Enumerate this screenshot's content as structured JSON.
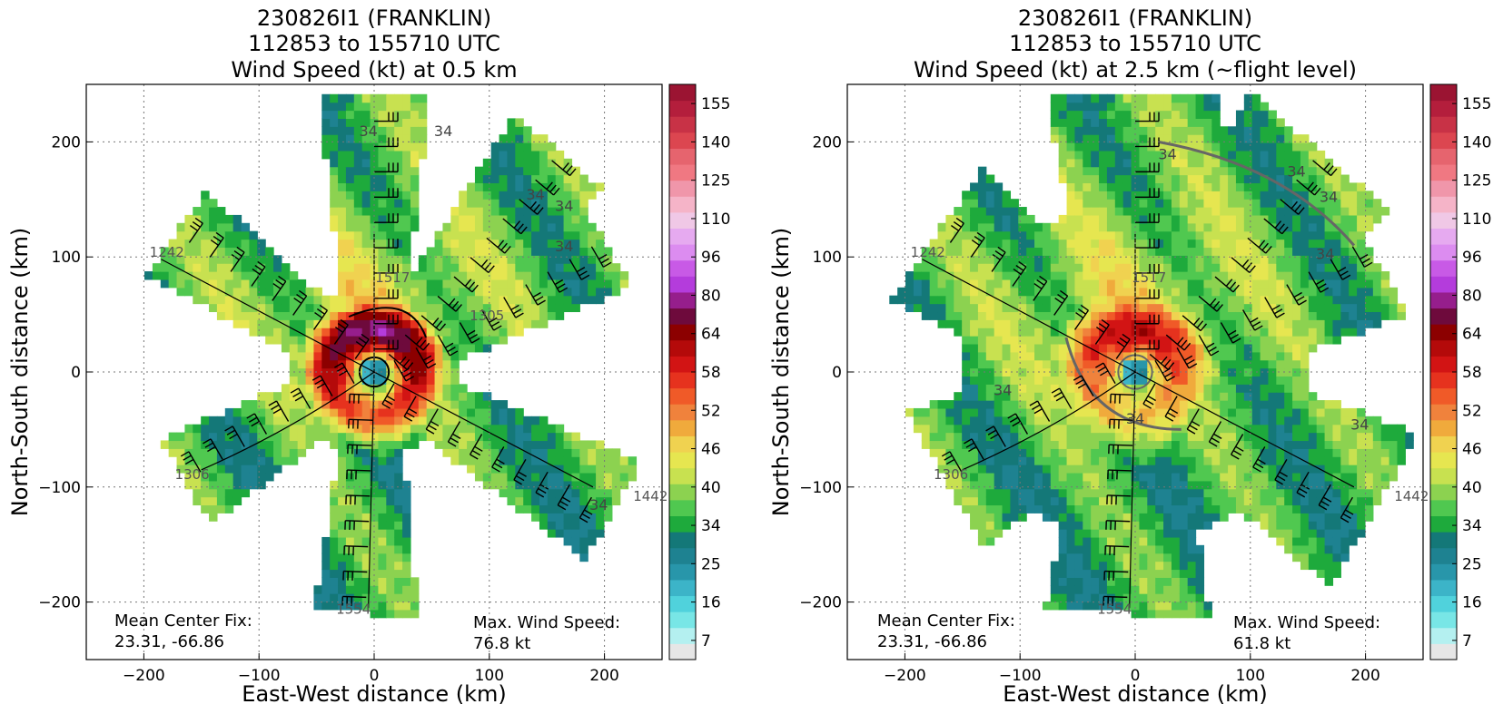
{
  "chart_data": [
    {
      "type": "heatmap",
      "title": [
        "230826I1 (FRANKLIN)",
        "112853 to 155710 UTC",
        "Wind Speed (kt) at 0.5 km"
      ],
      "xlabel": "East-West distance (km)",
      "ylabel": "North-South distance (km)",
      "xlim": [
        -250,
        250
      ],
      "ylim": [
        -250,
        250
      ],
      "xticks": [
        -200,
        -100,
        0,
        100,
        200
      ],
      "yticks": [
        -200,
        -100,
        0,
        100,
        200
      ],
      "grid": true,
      "colorbar_ticks": [
        7,
        16,
        25,
        34,
        40,
        46,
        52,
        58,
        64,
        80,
        96,
        110,
        125,
        140,
        155
      ],
      "contour_labels": [
        "34",
        "34",
        "34",
        "34",
        "34",
        "34"
      ],
      "track_labels": [
        "1242",
        "1517",
        "1305",
        "1306",
        "1554",
        "1442"
      ],
      "center_fix": {
        "label": "Mean Center Fix:",
        "value": "23.31, -66.86"
      },
      "max_wind": {
        "label": "Max. Wind Speed:",
        "value": "76.8 kt"
      }
    },
    {
      "type": "heatmap",
      "title": [
        "230826I1 (FRANKLIN)",
        "112853 to 155710 UTC",
        "Wind Speed (kt) at 2.5 km (~flight level)"
      ],
      "xlabel": "East-West distance (km)",
      "ylabel": "North-South distance (km)",
      "xlim": [
        -250,
        250
      ],
      "ylim": [
        -250,
        250
      ],
      "xticks": [
        -200,
        -100,
        0,
        100,
        200
      ],
      "yticks": [
        -200,
        -100,
        0,
        100,
        200
      ],
      "grid": true,
      "colorbar_ticks": [
        7,
        16,
        25,
        34,
        40,
        46,
        52,
        58,
        64,
        80,
        96,
        110,
        125,
        140,
        155
      ],
      "contour_labels": [
        "34",
        "34",
        "34",
        "34",
        "34",
        "34",
        "34"
      ],
      "track_labels": [
        "1242",
        "1517",
        "1306",
        "1554",
        "1442"
      ],
      "center_fix": {
        "label": "Mean Center Fix:",
        "value": "23.31, -66.86"
      },
      "max_wind": {
        "label": "Max. Wind Speed:",
        "value": "61.8 kt"
      }
    }
  ],
  "colors": {
    "scale": [
      "#e6e6e6",
      "#b4f0f0",
      "#78e6e6",
      "#50d2dc",
      "#3cb4c8",
      "#2896aa",
      "#1e8291",
      "#147878",
      "#1eaa3c",
      "#50c850",
      "#8cd250",
      "#c8e150",
      "#e6e650",
      "#f0d250",
      "#f0aa3c",
      "#f0823c",
      "#f05a28",
      "#e6321e",
      "#d21414",
      "#b40a0a",
      "#8c0000",
      "#6e0a3c",
      "#961e8c",
      "#b43cdc",
      "#c85ae6",
      "#dc8cf0",
      "#e6aaf0",
      "#f0c8e6",
      "#f5b4c8",
      "#f096aa",
      "#f07882",
      "#e6646e",
      "#dc4650",
      "#c83246",
      "#b41e3c",
      "#9b1432"
    ]
  }
}
